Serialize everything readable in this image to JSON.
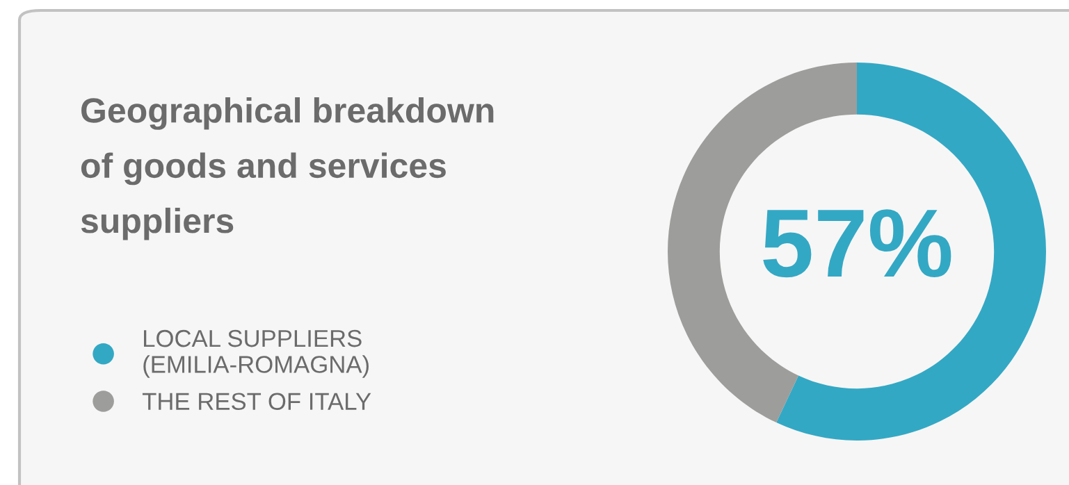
{
  "chart_data": {
    "type": "donut",
    "title": "Geographical breakdown\nof goods and services\nsuppliers",
    "categories": [
      "LOCAL SUPPLIERS\n(EMILIA-ROMAGNA)",
      "THE REST OF ITALY"
    ],
    "values": [
      57,
      43
    ],
    "colors": [
      "#33a8c4",
      "#9d9d9b"
    ],
    "value_labels": [
      "57%",
      null
    ],
    "legend": "left"
  }
}
